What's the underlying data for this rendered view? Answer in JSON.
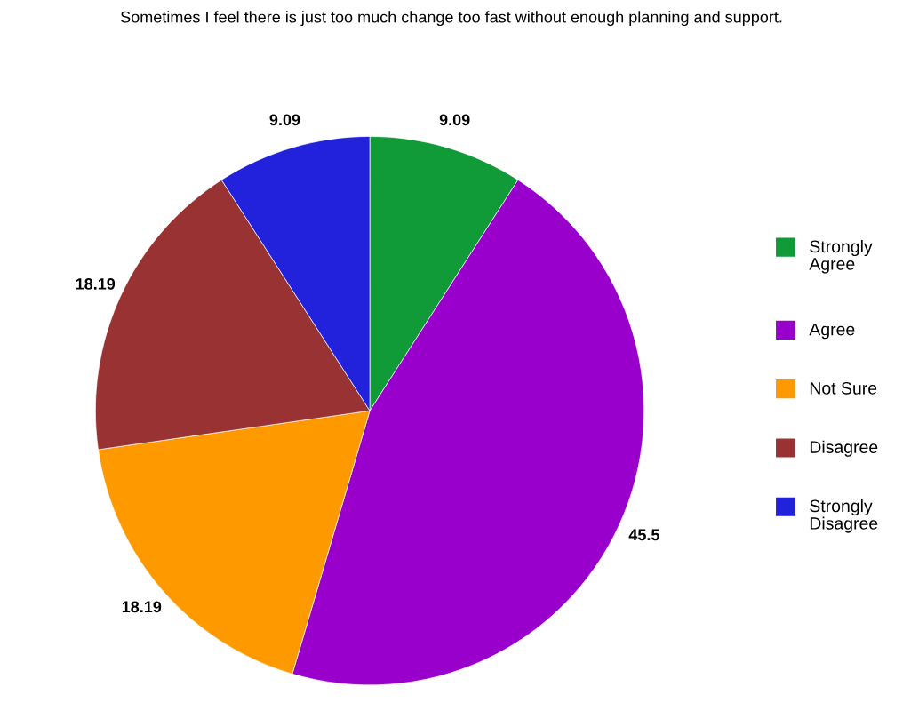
{
  "chart_data": {
    "type": "pie",
    "title": "Sometimes I feel there is just too much change too fast without enough planning and support.",
    "categories": [
      "Strongly Agree",
      "Agree",
      "Not Sure",
      "Disagree",
      "Strongly Disagree"
    ],
    "values": [
      9.09,
      45.5,
      18.19,
      18.19,
      9.09
    ],
    "colors": [
      "#109a38",
      "#9900cc",
      "#ff9900",
      "#993333",
      "#2222dd"
    ],
    "data_labels": true,
    "legend": "right"
  }
}
